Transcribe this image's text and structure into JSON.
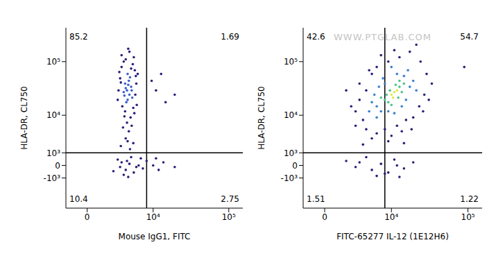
{
  "chart_data": [
    {
      "type": "scatter",
      "xlabel": "Mouse IgG1, FITC",
      "ylabel": "HLA-DR, CL750",
      "log": true,
      "xlim": [
        -1500,
        150000
      ],
      "ylim": [
        -7000,
        400000
      ],
      "xticks": [
        0,
        {
          "value": 10000,
          "label": "10⁴"
        },
        {
          "value": 100000,
          "label": "10⁵"
        }
      ],
      "yticks": [
        {
          "value": -1000,
          "label": "-10³"
        },
        0,
        {
          "value": 1000,
          "label": "10³"
        },
        {
          "value": 10000,
          "label": "10⁴"
        },
        {
          "value": 100000,
          "label": "10⁵"
        }
      ],
      "gates": {
        "x": 8000,
        "y": 1000
      },
      "quadrants": {
        "upper_left": 85.2,
        "upper_right": 1.69,
        "lower_left": 10.4,
        "lower_right": 2.75
      },
      "series": [
        {
          "color": "#2b1f7a",
          "points": [
            [
              3000,
              80000
            ],
            [
              3600,
              110000
            ],
            [
              4800,
              90000
            ],
            [
              5200,
              70000
            ],
            [
              2800,
              50000
            ],
            [
              5500,
              40000
            ],
            [
              2600,
              30000
            ],
            [
              5300,
              25000
            ],
            [
              3100,
              15000
            ],
            [
              4900,
              14000
            ],
            [
              3500,
              12000
            ],
            [
              4400,
              9000
            ],
            [
              3800,
              7000
            ],
            [
              3200,
              5500
            ],
            [
              4100,
              4500
            ],
            [
              3600,
              3000
            ],
            [
              4900,
              2200
            ],
            [
              2900,
              1800
            ],
            [
              4300,
              1400
            ],
            [
              5600,
              16000
            ],
            [
              2500,
              20000
            ],
            [
              3000,
              130000
            ],
            [
              4200,
              150000
            ],
            [
              5000,
              120000
            ],
            [
              5800,
              60000
            ],
            [
              2700,
              65000
            ],
            [
              3400,
              9500
            ],
            [
              4600,
              6000
            ],
            [
              3900,
              2500
            ],
            [
              5100,
              11000
            ],
            [
              3300,
              100000
            ],
            [
              4500,
              75000
            ],
            [
              2900,
              42000
            ],
            [
              5400,
              55000
            ],
            [
              4000,
              170000
            ],
            [
              11000,
              30000
            ],
            [
              15000,
              18000
            ],
            [
              9500,
              45000
            ],
            [
              13000,
              60000
            ],
            [
              20000,
              25000
            ],
            [
              3000,
              200
            ],
            [
              3600,
              -300
            ],
            [
              4200,
              100
            ],
            [
              5000,
              -500
            ],
            [
              2500,
              400
            ],
            [
              6000,
              0
            ],
            [
              7000,
              -200
            ],
            [
              4500,
              600
            ],
            [
              3300,
              -700
            ],
            [
              8000,
              300
            ],
            [
              5500,
              -100
            ],
            [
              2000,
              -400
            ],
            [
              4000,
              -900
            ],
            [
              6500,
              500
            ],
            [
              3800,
              300
            ],
            [
              2800,
              -100
            ],
            [
              10000,
              0
            ],
            [
              12000,
              -300
            ],
            [
              14000,
              200
            ],
            [
              20000,
              -100
            ],
            [
              11000,
              500
            ]
          ]
        },
        {
          "color": "#3a5fcd",
          "points": [
            [
              3800,
              30000
            ],
            [
              4200,
              25000
            ],
            [
              3500,
              40000
            ],
            [
              4500,
              35000
            ],
            [
              3900,
              20000
            ],
            [
              4100,
              45000
            ],
            [
              3300,
              28000
            ],
            [
              4700,
              22000
            ],
            [
              3600,
              33000
            ],
            [
              4300,
              52000
            ],
            [
              3700,
              18000
            ],
            [
              4000,
              38000
            ],
            [
              3400,
              24000
            ],
            [
              4600,
              30000
            ],
            [
              3900,
              60000
            ]
          ]
        }
      ]
    },
    {
      "type": "scatter",
      "xlabel": "FITC-65277 IL-12 (1E12H6)",
      "ylabel": "HLA-DR, CL750",
      "log": true,
      "xlim": [
        -1500,
        150000
      ],
      "ylim": [
        -7000,
        400000
      ],
      "xticks": [
        0,
        {
          "value": 10000,
          "label": "10⁴"
        },
        {
          "value": 100000,
          "label": "10⁵"
        }
      ],
      "yticks": [
        {
          "value": -1000,
          "label": "-10³"
        },
        0,
        {
          "value": 1000,
          "label": "10³"
        },
        {
          "value": 10000,
          "label": "10⁴"
        },
        {
          "value": 100000,
          "label": "10⁵"
        }
      ],
      "gates": {
        "x": 8000,
        "y": 1000
      },
      "quadrants": {
        "upper_left": 42.6,
        "upper_right": 54.7,
        "lower_left": 1.51,
        "lower_right": 1.22
      },
      "annotations": [
        "WWW.PTGLAB.COM"
      ],
      "series": [
        {
          "color": "#2b1f7a",
          "points": [
            [
              3000,
              20000
            ],
            [
              3500,
              8000
            ],
            [
              4000,
              30000
            ],
            [
              2500,
              12000
            ],
            [
              4000,
              5000
            ],
            [
              5000,
              60000
            ],
            [
              6000,
              80000
            ],
            [
              9000,
              100000
            ],
            [
              13000,
              120000
            ],
            [
              18000,
              150000
            ],
            [
              25000,
              100000
            ],
            [
              30000,
              60000
            ],
            [
              28000,
              25000
            ],
            [
              24000,
              15000
            ],
            [
              20000,
              9000
            ],
            [
              16000,
              8000
            ],
            [
              12000,
              6000
            ],
            [
              8000,
              5000
            ],
            [
              6000,
              4000
            ],
            [
              5000,
              3000
            ],
            [
              10000,
              3500
            ],
            [
              14000,
              4500
            ],
            [
              3000,
              40000
            ],
            [
              2000,
              15000
            ],
            [
              7000,
              130000
            ],
            [
              11000,
              160000
            ],
            [
              35000,
              40000
            ],
            [
              22000,
              200000
            ],
            [
              2500,
              6000
            ],
            [
              4500,
              70000
            ],
            [
              9000,
              2500
            ],
            [
              15000,
              2200
            ],
            [
              3500,
              2000
            ],
            [
              19000,
              5000
            ],
            [
              27000,
              12000
            ],
            [
              32000,
              20000
            ],
            [
              90000,
              80000
            ],
            [
              1500,
              30000
            ],
            [
              3000,
              200
            ],
            [
              5000,
              -300
            ],
            [
              7000,
              100
            ],
            [
              9000,
              -500
            ],
            [
              4000,
              600
            ],
            [
              12000,
              0
            ],
            [
              15000,
              -200
            ],
            [
              11000,
              400
            ],
            [
              6000,
              -800
            ],
            [
              20000,
              200
            ],
            [
              2500,
              -100
            ],
            [
              8000,
              -600
            ],
            [
              13000,
              -900
            ],
            [
              1500,
              300
            ]
          ]
        },
        {
          "color": "#3a7fd0",
          "points": [
            [
              6000,
              15000
            ],
            [
              5500,
              25000
            ],
            [
              16000,
              20000
            ],
            [
              18000,
              35000
            ],
            [
              7000,
              12000
            ],
            [
              9000,
              12000
            ],
            [
              12000,
              60000
            ],
            [
              15000,
              55000
            ],
            [
              20000,
              45000
            ],
            [
              6500,
              35000
            ],
            [
              5000,
              18000
            ],
            [
              8000,
              40000
            ],
            [
              11000,
              11000
            ],
            [
              14000,
              15000
            ],
            [
              17000,
              70000
            ],
            [
              4500,
              12000
            ],
            [
              7500,
              50000
            ],
            [
              10000,
              80000
            ],
            [
              22000,
              30000
            ],
            [
              6000,
              9000
            ]
          ]
        },
        {
          "color": "#4cc38a",
          "points": [
            [
              8000,
              20000
            ],
            [
              9000,
              18000
            ],
            [
              13000,
              35000
            ],
            [
              14000,
              28000
            ],
            [
              9500,
              30000
            ],
            [
              12500,
              22000
            ],
            [
              11500,
              38000
            ],
            [
              8500,
              25000
            ],
            [
              15000,
              40000
            ],
            [
              10000,
              16000
            ],
            [
              7000,
              22000
            ],
            [
              13000,
              45000
            ]
          ]
        },
        {
          "color": "#e6e64a",
          "points": [
            [
              10000,
              25000
            ],
            [
              11000,
              28000
            ],
            [
              12000,
              30000
            ],
            [
              10500,
              22000
            ]
          ]
        }
      ]
    }
  ]
}
